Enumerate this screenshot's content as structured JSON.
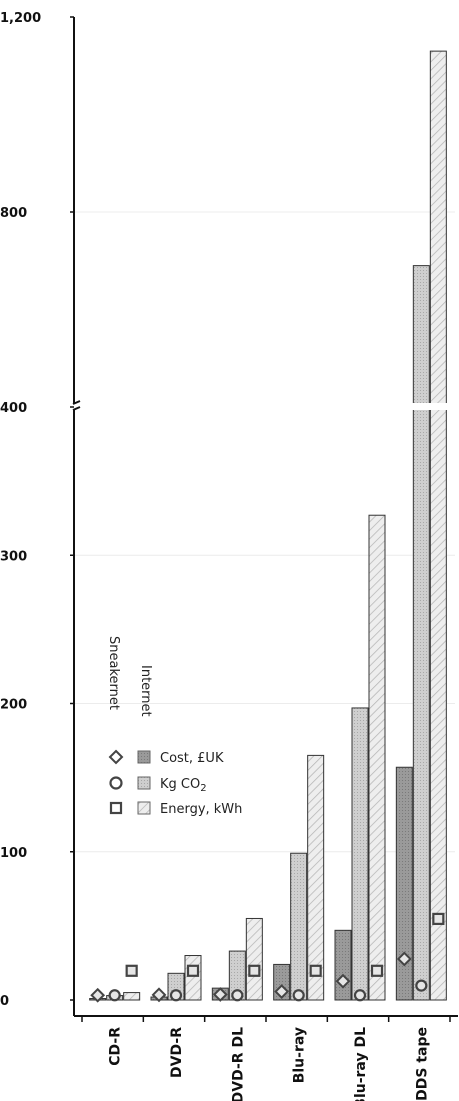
{
  "chart_data": {
    "type": "bar",
    "categories": [
      "CD-R",
      "DVD-R",
      "DVD-R DL",
      "Blu-ray",
      "Blu-ray DL",
      "DDS tape"
    ],
    "y_axis": {
      "tick_labels": [
        "0",
        "100",
        "200",
        "300",
        "400",
        "800",
        "1,200"
      ],
      "broken": true,
      "lower_range": [
        0,
        400
      ],
      "upper_range": [
        400,
        1200
      ]
    },
    "legend": {
      "group_labels": [
        "Sneakernet",
        "Internet"
      ],
      "entries": [
        "Cost, £UK",
        "Kg CO2",
        "Energy, kWh"
      ],
      "placement": "middle-left"
    },
    "series": [
      {
        "name": "Cost, £UK",
        "group": "Internet",
        "values": [
          1,
          2,
          8,
          24,
          47,
          157
        ]
      },
      {
        "name": "Kg CO2",
        "group": "Internet",
        "values": [
          3,
          18,
          33,
          99,
          197,
          690
        ]
      },
      {
        "name": "Energy, kWh",
        "group": "Internet",
        "values": [
          5,
          30,
          55,
          165,
          327,
          1130
        ]
      },
      {
        "name": "Cost, £UK",
        "group": "Sneakernet",
        "values": [
          0.5,
          0.8,
          1,
          3,
          10,
          25
        ]
      },
      {
        "name": "Kg CO2",
        "group": "Sneakernet",
        "values": [
          0.5,
          0.5,
          0.5,
          0.5,
          0.5,
          7
        ]
      },
      {
        "name": "Energy, kWh",
        "group": "Sneakernet",
        "values": [
          17,
          17,
          17,
          17,
          17,
          52
        ]
      }
    ],
    "grid": true,
    "colors": {
      "cost": "#9a9a9a",
      "co2": "#c8c8c8",
      "energy": "#e6e6e6",
      "outline": "#333333"
    }
  }
}
